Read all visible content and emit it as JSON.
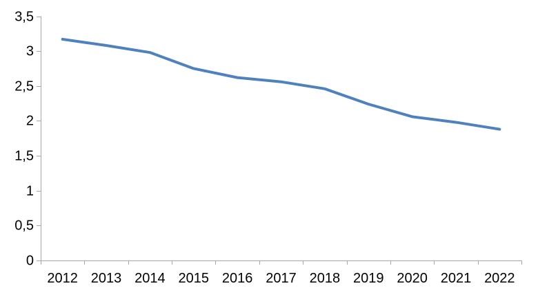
{
  "chart_data": {
    "type": "line",
    "title": "",
    "categories": [
      "2012",
      "2013",
      "2014",
      "2015",
      "2016",
      "2017",
      "2018",
      "2019",
      "2020",
      "2021",
      "2022"
    ],
    "values": [
      3.17,
      3.08,
      2.98,
      2.75,
      2.62,
      2.56,
      2.46,
      2.24,
      2.06,
      1.98,
      1.88
    ],
    "xlabel": "",
    "ylabel": "",
    "ylim": [
      0,
      3.5
    ],
    "y_tick_step": 0.5,
    "y_tick_labels": [
      "0",
      "0,5",
      "1",
      "1,5",
      "2",
      "2,5",
      "3",
      "3,5"
    ],
    "decimal_separator": ",",
    "grid": false,
    "legend": "none",
    "colors": {
      "line": "#4f81bd",
      "axis": "#a6a6a6",
      "tick_labels": "#000000",
      "background": "#ffffff"
    }
  }
}
